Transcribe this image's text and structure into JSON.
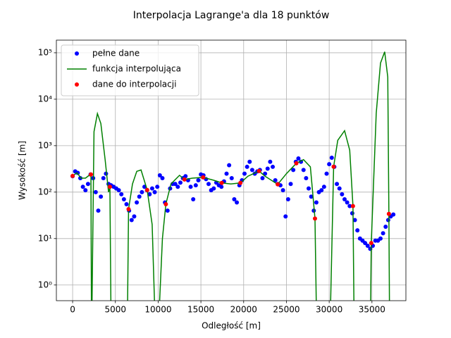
{
  "chart_data": {
    "type": "line",
    "title": "Interpolacja Lagrange'a dla 18 punktów",
    "x_label": "Odległość [m]",
    "y_label": "Wysokość [m]",
    "yscale": "log",
    "grid": true,
    "legend": "upper left",
    "xlim": [
      -1900,
      38970
    ],
    "ylim": [
      0.46,
      187000
    ],
    "xticks": [
      0,
      5000,
      10000,
      15000,
      20000,
      25000,
      30000,
      35000
    ],
    "yticks": [
      {
        "value": 1,
        "label": "10⁰"
      },
      {
        "value": 10,
        "label": "10¹"
      },
      {
        "value": 100,
        "label": "10²"
      },
      {
        "value": 1000,
        "label": "10³"
      },
      {
        "value": 10000,
        "label": "10⁴"
      },
      {
        "value": 100000,
        "label": "10⁵"
      }
    ],
    "series": [
      {
        "name": "pełne dane",
        "color": "#0000ff",
        "style": "points",
        "x": [
          0,
          300,
          600,
          900,
          1200,
          1500,
          1800,
          2100,
          2400,
          2700,
          3000,
          3300,
          3600,
          3900,
          4200,
          4500,
          4800,
          5100,
          5400,
          5700,
          6000,
          6300,
          6600,
          6900,
          7200,
          7500,
          7800,
          8100,
          8400,
          8700,
          9000,
          9300,
          9600,
          9900,
          10200,
          10500,
          10800,
          11100,
          11400,
          11700,
          12000,
          12300,
          12600,
          12900,
          13200,
          13500,
          13800,
          14100,
          14400,
          14700,
          15000,
          15300,
          15600,
          15900,
          16200,
          16500,
          16800,
          17100,
          17400,
          17700,
          18000,
          18300,
          18600,
          18900,
          19200,
          19500,
          19800,
          20100,
          20400,
          20700,
          21000,
          21300,
          21600,
          21900,
          22200,
          22500,
          22800,
          23100,
          23400,
          23700,
          24000,
          24300,
          24600,
          24900,
          25200,
          25500,
          25800,
          26100,
          26400,
          26700,
          27000,
          27300,
          27600,
          27900,
          28200,
          28500,
          28800,
          29100,
          29400,
          29700,
          30000,
          30300,
          30600,
          30900,
          31200,
          31500,
          31800,
          32100,
          32400,
          32700,
          33000,
          33300,
          33600,
          33900,
          34200,
          34500,
          34800,
          35100,
          35400,
          35700,
          36000,
          36300,
          36600,
          36900,
          37200,
          37500
        ],
        "values": [
          220,
          280,
          260,
          200,
          130,
          110,
          150,
          240,
          200,
          100,
          40,
          80,
          200,
          250,
          150,
          140,
          130,
          120,
          110,
          90,
          70,
          55,
          40,
          25,
          30,
          60,
          80,
          100,
          130,
          110,
          90,
          120,
          100,
          130,
          230,
          200,
          60,
          40,
          120,
          150,
          150,
          130,
          160,
          200,
          220,
          180,
          130,
          70,
          140,
          180,
          240,
          230,
          190,
          150,
          110,
          120,
          160,
          140,
          130,
          170,
          250,
          380,
          200,
          70,
          60,
          140,
          180,
          250,
          350,
          450,
          300,
          250,
          280,
          300,
          200,
          250,
          320,
          450,
          350,
          180,
          150,
          140,
          110,
          30,
          70,
          150,
          300,
          450,
          530,
          450,
          300,
          200,
          120,
          80,
          40,
          60,
          100,
          110,
          130,
          250,
          400,
          550,
          350,
          150,
          120,
          90,
          70,
          60,
          50,
          35,
          25,
          15,
          10,
          9,
          8,
          7,
          6,
          7,
          9,
          9,
          10,
          13,
          18,
          25,
          30,
          33
        ]
      },
      {
        "name": "funkcja interpolująca",
        "color": "#008000",
        "style": "line",
        "x": [
          0,
          500,
          1000,
          1500,
          2000,
          2140,
          2200,
          2220,
          2260,
          2500,
          2900,
          3300,
          3800,
          4200,
          4360,
          4480,
          4500,
          6420,
          6540,
          7000,
          7500,
          8000,
          8720,
          9300,
          9600,
          9700,
          10130,
          10500,
          10900,
          11500,
          12500,
          13080,
          14000,
          15260,
          16500,
          17440,
          18500,
          19620,
          20500,
          21800,
          22500,
          23980,
          25000,
          26160,
          27000,
          27800,
          28340,
          28500,
          28600,
          30150,
          30520,
          31000,
          31800,
          32400,
          32780,
          32900,
          33000,
          34840,
          34920,
          35500,
          36000,
          36490,
          36850,
          36980,
          37050
        ],
        "values": [
          223,
          260,
          200,
          200,
          235,
          240,
          0.3,
          null,
          0.3,
          2000,
          4900,
          3000,
          500,
          100,
          130,
          0.3,
          null,
          0.3,
          43,
          150,
          280,
          300,
          111,
          20,
          0.3,
          null,
          0.3,
          10,
          55,
          150,
          230,
          187,
          200,
          208,
          180,
          158,
          150,
          158,
          220,
          284,
          220,
          147,
          250,
          417,
          500,
          350,
          27,
          0.3,
          null,
          0.3,
          353,
          1300,
          2100,
          800,
          50,
          0.3,
          null,
          0.3,
          8,
          5000,
          60000,
          105000,
          30000,
          34,
          0.3
        ]
      },
      {
        "name": "dane do interpolacji",
        "color": "#ff0000",
        "style": "points",
        "x": [
          0,
          2140,
          4360,
          6540,
          8720,
          10900,
          13080,
          15260,
          17440,
          19620,
          21800,
          23980,
          26160,
          28340,
          30520,
          32780,
          34920,
          36980
        ],
        "values": [
          223,
          240,
          130,
          43,
          111,
          55,
          187,
          208,
          158,
          158,
          284,
          147,
          417,
          27,
          353,
          50,
          8,
          34
        ]
      }
    ]
  }
}
